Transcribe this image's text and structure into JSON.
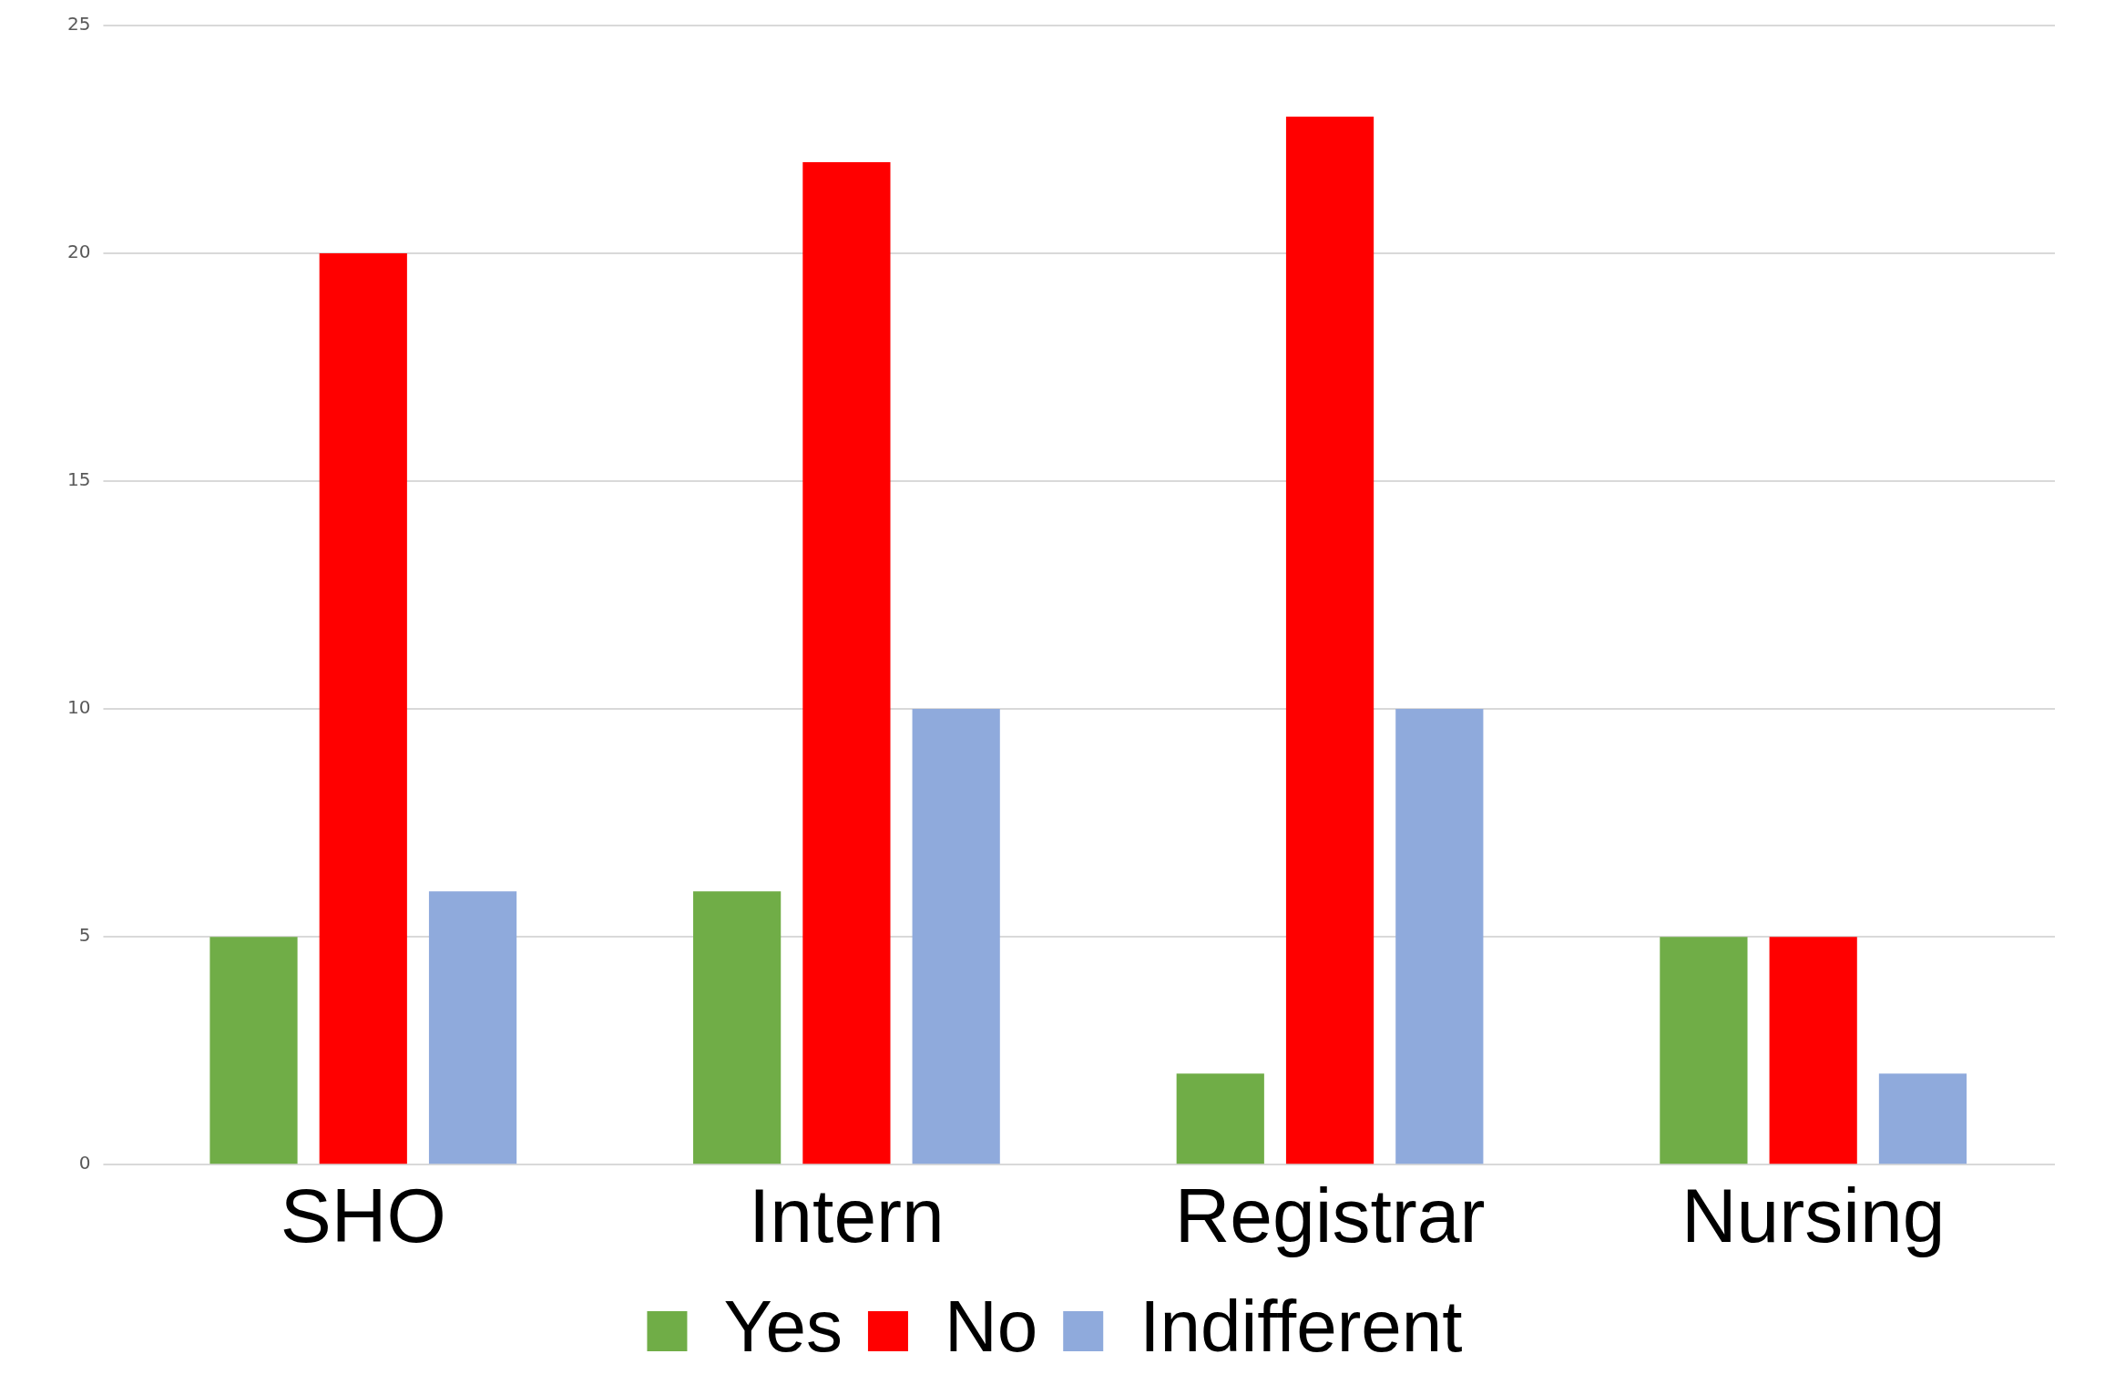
{
  "chart_data": {
    "type": "bar",
    "categories": [
      "SHO",
      "Intern",
      "Registrar",
      "Nursing"
    ],
    "series": [
      {
        "name": "Yes",
        "color": "#70ad47",
        "values": [
          5,
          6,
          2,
          5
        ]
      },
      {
        "name": "No",
        "color": "#ff0000",
        "values": [
          20,
          22,
          23,
          5
        ]
      },
      {
        "name": "Indifferent",
        "color": "#8faadc",
        "values": [
          6,
          10,
          10,
          2
        ]
      }
    ],
    "ylim": [
      0,
      25
    ],
    "yticks": [
      0,
      5,
      10,
      15,
      20,
      25
    ],
    "grid": "y",
    "legend": "bottom"
  }
}
